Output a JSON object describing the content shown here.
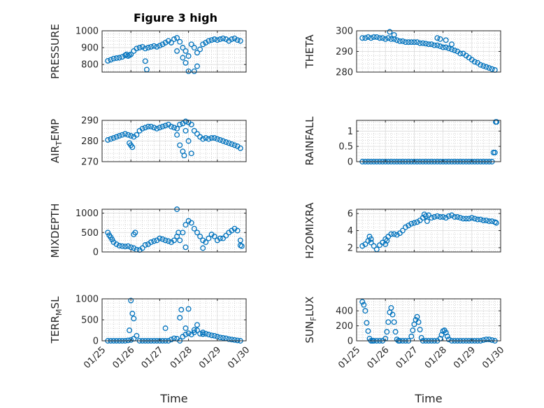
{
  "figure": {
    "title": "Figure 3 high",
    "marker_color": "#0072BD"
  },
  "chart_data": [
    {
      "type": "scatter",
      "panel": "pressure",
      "title": "Figure 3 high",
      "ylabel": "PRESSURE",
      "ylabel_main": "PRESSURE",
      "ylabel_sub": "",
      "ylabel_tail": "",
      "xlabel": "",
      "xlim": [
        0,
        5
      ],
      "ylim": [
        755,
        1000
      ],
      "yticks": [
        800,
        900,
        1000
      ],
      "xticklabels": [
        "01/25",
        "01/26",
        "01/27",
        "01/28",
        "01/29",
        "01/30"
      ],
      "grid": true,
      "minor_grid": true,
      "x": [
        0.2,
        0.3,
        0.4,
        0.5,
        0.6,
        0.7,
        0.8,
        0.85,
        0.9,
        0.95,
        1.0,
        1.1,
        1.2,
        1.3,
        1.4,
        1.5,
        1.6,
        1.7,
        1.8,
        1.9,
        2.0,
        2.1,
        2.2,
        2.3,
        2.4,
        2.5,
        2.6,
        2.7,
        2.8,
        2.9,
        3.0,
        3.1,
        3.2,
        3.3,
        3.4,
        3.5,
        3.6,
        3.7,
        3.8,
        3.9,
        4.0,
        4.1,
        4.2,
        4.3,
        4.4,
        4.5,
        4.6,
        4.7,
        4.8,
        2.6,
        2.8,
        3.0,
        3.3,
        3.2,
        1.5,
        1.55,
        2.9
      ],
      "y": [
        822,
        828,
        835,
        838,
        840,
        845,
        855,
        860,
        850,
        855,
        860,
        880,
        895,
        900,
        905,
        895,
        900,
        905,
        910,
        905,
        912,
        920,
        930,
        940,
        930,
        950,
        958,
        935,
        900,
        880,
        850,
        920,
        900,
        870,
        890,
        920,
        930,
        940,
        945,
        950,
        945,
        950,
        955,
        950,
        940,
        950,
        955,
        945,
        940,
        880,
        840,
        760,
        790,
        760,
        820,
        770,
        810
      ]
    },
    {
      "type": "scatter",
      "panel": "theta",
      "title": "",
      "ylabel": "THETA",
      "ylabel_main": "THETA",
      "ylabel_sub": "",
      "ylabel_tail": "",
      "xlabel": "",
      "xlim": [
        0,
        5
      ],
      "ylim": [
        280,
        300
      ],
      "yticks": [
        280,
        290,
        300
      ],
      "xticklabels": [
        "01/25",
        "01/26",
        "01/27",
        "01/28",
        "01/29",
        "01/30"
      ],
      "grid": true,
      "minor_grid": true,
      "x": [
        0.2,
        0.3,
        0.4,
        0.5,
        0.6,
        0.7,
        0.8,
        0.9,
        1.0,
        1.1,
        1.2,
        1.3,
        1.4,
        1.5,
        1.6,
        1.7,
        1.8,
        1.9,
        2.0,
        2.1,
        2.2,
        2.3,
        2.4,
        2.5,
        2.6,
        2.7,
        2.8,
        2.9,
        3.0,
        3.1,
        3.2,
        3.3,
        3.4,
        3.5,
        3.6,
        3.7,
        3.8,
        3.9,
        4.0,
        4.1,
        4.2,
        4.3,
        4.4,
        4.5,
        4.6,
        4.7,
        4.8,
        1.15,
        1.3,
        2.8,
        2.9,
        3.1,
        3.3
      ],
      "y": [
        296.5,
        296.5,
        297,
        296.5,
        297,
        297,
        296.5,
        296.5,
        296,
        296.5,
        296,
        296,
        295.5,
        295,
        295,
        294.5,
        294.5,
        294.5,
        294.5,
        294.5,
        294,
        294,
        293.8,
        293.5,
        293.5,
        293,
        293,
        292.5,
        292,
        292,
        291.5,
        291,
        290.5,
        290,
        289,
        289,
        288,
        287,
        286,
        285,
        284.5,
        283.5,
        283,
        282.5,
        282,
        281.5,
        281,
        299.5,
        298,
        296.5,
        296,
        295.5,
        293.5
      ]
    },
    {
      "type": "scatter",
      "panel": "air_temp",
      "title": "",
      "ylabel": "AIR_TEMP",
      "ylabel_main": "AIR",
      "ylabel_sub": "T",
      "ylabel_tail": "EMP",
      "xlabel": "",
      "xlim": [
        0,
        5
      ],
      "ylim": [
        270,
        290
      ],
      "yticks": [
        270,
        280,
        290
      ],
      "xticklabels": [
        "01/25",
        "01/26",
        "01/27",
        "01/28",
        "01/29",
        "01/30"
      ],
      "grid": true,
      "minor_grid": true,
      "x": [
        0.2,
        0.3,
        0.4,
        0.5,
        0.6,
        0.7,
        0.8,
        0.9,
        1.0,
        1.1,
        1.2,
        1.3,
        1.4,
        1.5,
        1.6,
        1.7,
        1.8,
        1.9,
        2.0,
        2.1,
        2.2,
        2.3,
        2.4,
        2.5,
        2.6,
        2.7,
        2.8,
        2.9,
        3.0,
        3.1,
        3.2,
        3.3,
        3.4,
        3.5,
        3.6,
        3.7,
        3.8,
        3.9,
        4.0,
        4.1,
        4.2,
        4.3,
        4.4,
        4.5,
        4.6,
        4.7,
        4.8,
        0.95,
        1.0,
        1.05,
        2.6,
        2.7,
        2.8,
        2.85,
        2.9,
        3.0,
        3.1
      ],
      "y": [
        280.5,
        281,
        281.5,
        282,
        282.5,
        283,
        283.5,
        283,
        282.5,
        282,
        283,
        285,
        286,
        286.5,
        287,
        287,
        286.5,
        286,
        286.5,
        287,
        287.5,
        288,
        287,
        286.5,
        286,
        288,
        288.5,
        289.5,
        289,
        288,
        285,
        283.5,
        282,
        281,
        281.5,
        281,
        281.5,
        281.5,
        281,
        280.5,
        280,
        279.5,
        279,
        278.5,
        278,
        277.5,
        276.5,
        279,
        278,
        277,
        283,
        278,
        275,
        273,
        285,
        280,
        274
      ]
    },
    {
      "type": "scatter",
      "panel": "rainfall",
      "title": "",
      "ylabel": "RAINFALL",
      "ylabel_main": "RAINFALL",
      "ylabel_sub": "",
      "ylabel_tail": "",
      "xlabel": "",
      "xlim": [
        0,
        5
      ],
      "ylim": [
        0,
        1.35
      ],
      "yticks": [
        0,
        0.5,
        1
      ],
      "xticklabels": [
        "01/25",
        "01/26",
        "01/27",
        "01/28",
        "01/29",
        "01/30"
      ],
      "grid": true,
      "minor_grid": true,
      "x": [
        0.2,
        0.3,
        0.4,
        0.5,
        0.6,
        0.7,
        0.8,
        0.9,
        1.0,
        1.1,
        1.2,
        1.3,
        1.4,
        1.5,
        1.6,
        1.7,
        1.8,
        1.9,
        2.0,
        2.1,
        2.2,
        2.3,
        2.4,
        2.5,
        2.6,
        2.7,
        2.8,
        2.9,
        3.0,
        3.1,
        3.2,
        3.3,
        3.4,
        3.5,
        3.6,
        3.7,
        3.8,
        3.9,
        4.0,
        4.1,
        4.2,
        4.3,
        4.4,
        4.5,
        4.6,
        4.7,
        4.75,
        4.8,
        4.83,
        4.86
      ],
      "y": [
        0,
        0,
        0,
        0,
        0,
        0,
        0,
        0,
        0,
        0,
        0,
        0,
        0,
        0,
        0,
        0,
        0,
        0,
        0,
        0,
        0,
        0,
        0,
        0,
        0,
        0,
        0,
        0,
        0,
        0,
        0,
        0,
        0,
        0,
        0,
        0,
        0,
        0,
        0,
        0,
        0,
        0,
        0,
        0,
        0,
        0,
        0.3,
        0.3,
        1.3,
        1.3
      ]
    },
    {
      "type": "scatter",
      "panel": "mixdepth",
      "title": "",
      "ylabel": "MIXDEPTH",
      "ylabel_main": "MIXDEPTH",
      "ylabel_sub": "",
      "ylabel_tail": "",
      "xlabel": "",
      "xlim": [
        0,
        5
      ],
      "ylim": [
        0,
        1100
      ],
      "yticks": [
        0,
        500,
        1000
      ],
      "xticklabels": [
        "01/25",
        "01/26",
        "01/27",
        "01/28",
        "01/29",
        "01/30"
      ],
      "grid": true,
      "minor_grid": true,
      "x": [
        0.2,
        0.25,
        0.3,
        0.35,
        0.4,
        0.5,
        0.6,
        0.7,
        0.8,
        0.9,
        1.0,
        1.1,
        1.2,
        1.3,
        1.4,
        1.5,
        1.6,
        1.7,
        1.8,
        1.9,
        2.0,
        2.1,
        2.2,
        2.3,
        2.4,
        2.5,
        2.6,
        2.7,
        2.8,
        2.9,
        3.0,
        3.1,
        3.2,
        3.3,
        3.4,
        3.5,
        3.6,
        3.7,
        3.8,
        3.9,
        4.0,
        4.1,
        4.2,
        4.3,
        4.4,
        4.5,
        4.6,
        4.7,
        4.8,
        4.85,
        1.1,
        1.15,
        2.6,
        2.65,
        2.9,
        3.5,
        4.8
      ],
      "y": [
        500,
        430,
        380,
        320,
        250,
        200,
        160,
        150,
        140,
        150,
        120,
        100,
        60,
        50,
        100,
        180,
        200,
        250,
        280,
        300,
        350,
        330,
        300,
        280,
        250,
        300,
        400,
        300,
        500,
        700,
        800,
        750,
        600,
        500,
        400,
        300,
        250,
        350,
        450,
        400,
        300,
        350,
        350,
        420,
        500,
        550,
        600,
        550,
        300,
        150,
        450,
        500,
        1100,
        500,
        120,
        100,
        170
      ]
    },
    {
      "type": "scatter",
      "panel": "h2omixra",
      "title": "",
      "ylabel": "H2OMIXRA",
      "ylabel_main": "H2OMIXRA",
      "ylabel_sub": "",
      "ylabel_tail": "",
      "xlabel": "",
      "xlim": [
        0,
        5
      ],
      "ylim": [
        1.5,
        6.5
      ],
      "yticks": [
        2,
        4,
        6
      ],
      "xticklabels": [
        "01/25",
        "01/26",
        "01/27",
        "01/28",
        "01/29",
        "01/30"
      ],
      "grid": true,
      "minor_grid": true,
      "x": [
        0.2,
        0.3,
        0.4,
        0.5,
        0.6,
        0.7,
        0.8,
        0.9,
        1.0,
        1.1,
        1.2,
        1.3,
        1.4,
        1.5,
        1.6,
        1.7,
        1.8,
        1.9,
        2.0,
        2.1,
        2.2,
        2.3,
        2.4,
        2.5,
        2.6,
        2.7,
        2.8,
        2.9,
        3.0,
        3.1,
        3.2,
        3.3,
        3.4,
        3.5,
        3.6,
        3.7,
        3.8,
        3.9,
        4.0,
        4.1,
        4.2,
        4.3,
        4.4,
        4.5,
        4.6,
        4.7,
        4.8,
        4.85,
        0.45,
        0.5,
        1.0,
        1.05,
        2.35,
        2.45
      ],
      "y": [
        2.2,
        2.4,
        2.8,
        3.0,
        2.2,
        1.8,
        2.3,
        2.6,
        3.0,
        3.3,
        3.6,
        3.6,
        3.5,
        3.7,
        4.0,
        4.4,
        4.6,
        4.8,
        4.9,
        5.0,
        5.2,
        5.5,
        5.7,
        5.8,
        5.5,
        5.6,
        5.7,
        5.6,
        5.6,
        5.5,
        5.7,
        5.8,
        5.6,
        5.6,
        5.5,
        5.4,
        5.4,
        5.4,
        5.5,
        5.4,
        5.3,
        5.3,
        5.2,
        5.2,
        5.1,
        5.1,
        5.0,
        4.9,
        3.3,
        2.6,
        2.4,
        2.8,
        5.9,
        5.1
      ]
    },
    {
      "type": "scatter",
      "panel": "terr_msl",
      "title": "",
      "ylabel": "TERR_MSL",
      "ylabel_main": "TERR",
      "ylabel_sub": "M",
      "ylabel_tail": "SL",
      "xlabel": "Time",
      "xlim": [
        0,
        5
      ],
      "ylim": [
        0,
        1000
      ],
      "yticks": [
        0,
        500,
        1000
      ],
      "xticklabels": [
        "01/25",
        "01/26",
        "01/27",
        "01/28",
        "01/29",
        "01/30"
      ],
      "grid": true,
      "minor_grid": true,
      "x": [
        0.2,
        0.3,
        0.4,
        0.5,
        0.6,
        0.7,
        0.8,
        0.9,
        1.0,
        1.1,
        1.2,
        1.3,
        1.4,
        1.5,
        1.6,
        1.7,
        1.8,
        1.9,
        2.0,
        2.1,
        2.2,
        2.3,
        2.4,
        2.5,
        2.6,
        2.7,
        2.8,
        2.9,
        3.0,
        3.1,
        3.2,
        3.3,
        3.4,
        3.5,
        3.6,
        3.7,
        3.8,
        3.9,
        4.0,
        4.1,
        4.2,
        4.3,
        4.4,
        4.5,
        4.6,
        4.7,
        4.8,
        0.95,
        1.0,
        1.05,
        1.1,
        2.2,
        2.7,
        2.75,
        2.9,
        3.0,
        3.2,
        3.3,
        3.5
      ],
      "y": [
        0,
        0,
        0,
        0,
        0,
        0,
        0,
        10,
        20,
        50,
        120,
        0,
        0,
        0,
        0,
        0,
        0,
        0,
        0,
        0,
        0,
        0,
        30,
        60,
        50,
        0,
        100,
        300,
        180,
        150,
        200,
        250,
        170,
        160,
        170,
        150,
        130,
        120,
        100,
        80,
        70,
        60,
        40,
        30,
        20,
        10,
        0,
        250,
        960,
        650,
        530,
        300,
        550,
        740,
        150,
        760,
        260,
        380,
        200
      ]
    },
    {
      "type": "scatter",
      "panel": "sun_flux",
      "title": "",
      "ylabel": "SUN_FLUX",
      "ylabel_main": "SUN",
      "ylabel_sub": "F",
      "ylabel_tail": "LUX",
      "xlabel": "Time",
      "xlim": [
        0,
        5
      ],
      "ylim": [
        0,
        560
      ],
      "yticks": [
        0,
        200,
        400
      ],
      "xticklabels": [
        "01/25",
        "01/26",
        "01/27",
        "01/28",
        "01/29",
        "01/30"
      ],
      "grid": true,
      "minor_grid": true,
      "x": [
        0.2,
        0.25,
        0.3,
        0.35,
        0.4,
        0.45,
        0.5,
        0.55,
        0.6,
        0.7,
        0.8,
        0.9,
        1.0,
        1.05,
        1.1,
        1.15,
        1.2,
        1.25,
        1.3,
        1.35,
        1.4,
        1.45,
        1.5,
        1.6,
        1.7,
        1.8,
        1.9,
        1.95,
        2.0,
        2.05,
        2.1,
        2.15,
        2.2,
        2.25,
        2.3,
        2.4,
        2.5,
        2.6,
        2.7,
        2.8,
        2.9,
        2.95,
        3.0,
        3.05,
        3.1,
        3.15,
        3.2,
        3.3,
        3.4,
        3.5,
        3.6,
        3.7,
        3.8,
        3.9,
        4.0,
        4.1,
        4.2,
        4.3,
        4.4,
        4.5,
        4.6,
        4.7,
        4.8
      ],
      "y": [
        520,
        480,
        400,
        240,
        130,
        30,
        0,
        0,
        0,
        0,
        0,
        0,
        30,
        120,
        250,
        380,
        440,
        350,
        250,
        120,
        20,
        0,
        0,
        0,
        0,
        0,
        60,
        140,
        220,
        280,
        320,
        250,
        150,
        40,
        0,
        0,
        0,
        0,
        0,
        0,
        30,
        80,
        130,
        140,
        110,
        60,
        20,
        0,
        0,
        0,
        0,
        0,
        0,
        0,
        0,
        0,
        0,
        0,
        10,
        20,
        20,
        10,
        0
      ]
    }
  ]
}
